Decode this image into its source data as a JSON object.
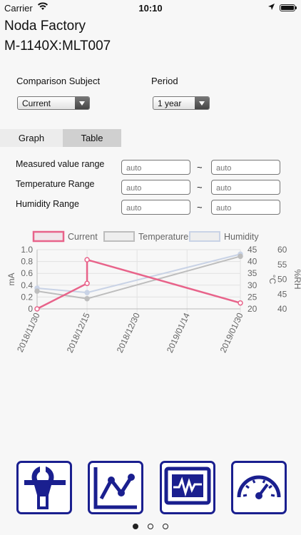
{
  "status": {
    "carrier": "Carrier",
    "time": "10:10"
  },
  "header": {
    "factory": "Noda Factory",
    "device": "M-1140X:MLT007"
  },
  "controls": {
    "comparison_label": "Comparison Subject",
    "comparison_value": "Current",
    "period_label": "Period",
    "period_value": "1 year"
  },
  "tabs": [
    {
      "label": "Graph"
    },
    {
      "label": "Table"
    }
  ],
  "ranges": [
    {
      "label": "Measured value range",
      "min_placeholder": "auto",
      "max_placeholder": "auto"
    },
    {
      "label": "Temperature Range",
      "min_placeholder": "auto",
      "max_placeholder": "auto"
    },
    {
      "label": "Humidity Range",
      "min_placeholder": "auto",
      "max_placeholder": "auto"
    }
  ],
  "tilde": "~",
  "chart_data": {
    "type": "line",
    "title": "",
    "legend": [
      "Current",
      "Temperature",
      "Humidity"
    ],
    "legend_placement": "top",
    "ylabel_left": "mA",
    "ylabel_right1": "°C",
    "ylabel_right2": "%RH",
    "ylim_left": [
      0,
      1
    ],
    "ylim_right1": [
      20,
      45
    ],
    "ylim_right2": [
      40,
      60
    ],
    "y_ticks_left": [
      "0",
      "0.2",
      "0.4",
      "0.6",
      "0.8",
      "1.0"
    ],
    "y_ticks_right1": [
      "20",
      "25",
      "30",
      "35",
      "40",
      "45"
    ],
    "y_ticks_right2": [
      "40",
      "45",
      "50",
      "55",
      "60"
    ],
    "x_ticks": [
      "2018/11/30",
      "2018/12/15",
      "2018/12/30",
      "2019/01/14",
      "2019/01/30"
    ],
    "colors": {
      "current": "#e8638a",
      "temperature": "#bdbdbd",
      "humidity": "#c9d3e6"
    },
    "series": [
      {
        "name": "Current",
        "axis": "left",
        "points": [
          [
            "2018/11/30",
            0
          ],
          [
            "2018/12/15",
            0.43
          ],
          [
            "2018/12/15",
            0.83
          ],
          [
            "2019/01/30",
            0.1
          ]
        ]
      },
      {
        "name": "Temperature",
        "axis": "right1",
        "points": [
          [
            "2018/11/30",
            27.5
          ],
          [
            "2018/12/15",
            24.3
          ],
          [
            "2019/01/30",
            42.2
          ]
        ]
      },
      {
        "name": "Humidity",
        "axis": "right2",
        "points": [
          [
            "2018/11/30",
            47
          ],
          [
            "2018/12/15",
            45.5
          ],
          [
            "2019/01/30",
            58.5
          ]
        ]
      }
    ]
  },
  "bottom_icons": [
    {
      "name": "clamp-meter-icon"
    },
    {
      "name": "trend-graph-icon"
    },
    {
      "name": "waveform-monitor-icon"
    },
    {
      "name": "gauge-icon"
    }
  ],
  "page_indicator": {
    "count": 3,
    "active": 0
  }
}
